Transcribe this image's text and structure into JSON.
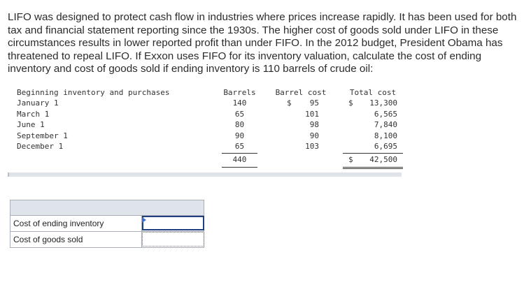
{
  "problem_text": "LIFO was designed to protect cash flow in industries where prices increase rapidly. It has been used for both tax and financial statement reporting since the 1930s. The higher cost of goods sold under LIFO in these circumstances results in lower reported profit than under FIFO. In the 2012 budget, President Obama has threatened to repeal LIFO. If Exxon uses FIFO for its inventory valuation, calculate the cost of ending inventory and cost of goods sold if ending inventory is 110 barrels of crude oil:",
  "table": {
    "headers": {
      "label": "Beginning inventory and purchases",
      "barrels": "Barrels",
      "barrel_cost": "Barrel cost",
      "total_cost": "Total cost"
    },
    "rows": [
      {
        "label": "January 1",
        "barrels": "140",
        "cost_symbol": "$",
        "cost": "95",
        "total_symbol": "$",
        "total": "13,300"
      },
      {
        "label": "March 1",
        "barrels": "65",
        "cost_symbol": "",
        "cost": "101",
        "total_symbol": "",
        "total": "6,565"
      },
      {
        "label": "June 1",
        "barrels": "80",
        "cost_symbol": "",
        "cost": "98",
        "total_symbol": "",
        "total": "7,840"
      },
      {
        "label": "September 1",
        "barrels": "90",
        "cost_symbol": "",
        "cost": "90",
        "total_symbol": "",
        "total": "8,100"
      },
      {
        "label": "December 1",
        "barrels": "65",
        "cost_symbol": "",
        "cost": "103",
        "total_symbol": "",
        "total": "6,695"
      }
    ],
    "totals": {
      "barrels": "440",
      "total_symbol": "$",
      "total": "42,500"
    }
  },
  "answer_table": {
    "rows": [
      {
        "label": "Cost of ending inventory",
        "value": ""
      },
      {
        "label": "Cost of goods sold",
        "value": ""
      }
    ]
  }
}
